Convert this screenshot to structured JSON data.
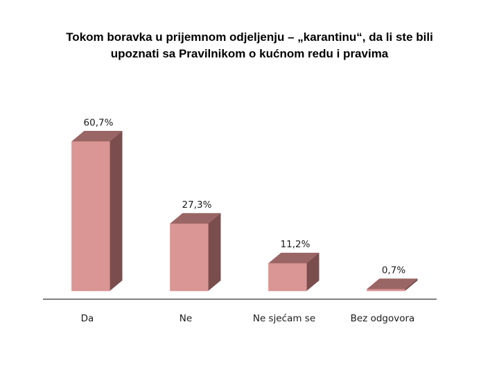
{
  "chart_data": {
    "type": "bar",
    "title_lines": [
      "Tokom boravka u prijemnom odjeljenju – „karantinu“, da li ste bili",
      "upoznati sa Pravilnikom o kućnom redu i pravima"
    ],
    "categories": [
      "Da",
      "Ne",
      "Ne sjećam se",
      "Bez odgovora"
    ],
    "values": [
      60.7,
      27.3,
      11.2,
      0.7
    ],
    "data_labels": [
      "60,7%",
      "27,3%",
      "11,2%",
      "0,7%"
    ],
    "ylim": [
      0,
      65
    ],
    "grid": false,
    "legend": "none",
    "style": "3d-columns",
    "colors": {
      "front": "#d99694",
      "side": "#7a4e4d",
      "top": "#9a6665",
      "axis": "#7f7f7f"
    }
  }
}
